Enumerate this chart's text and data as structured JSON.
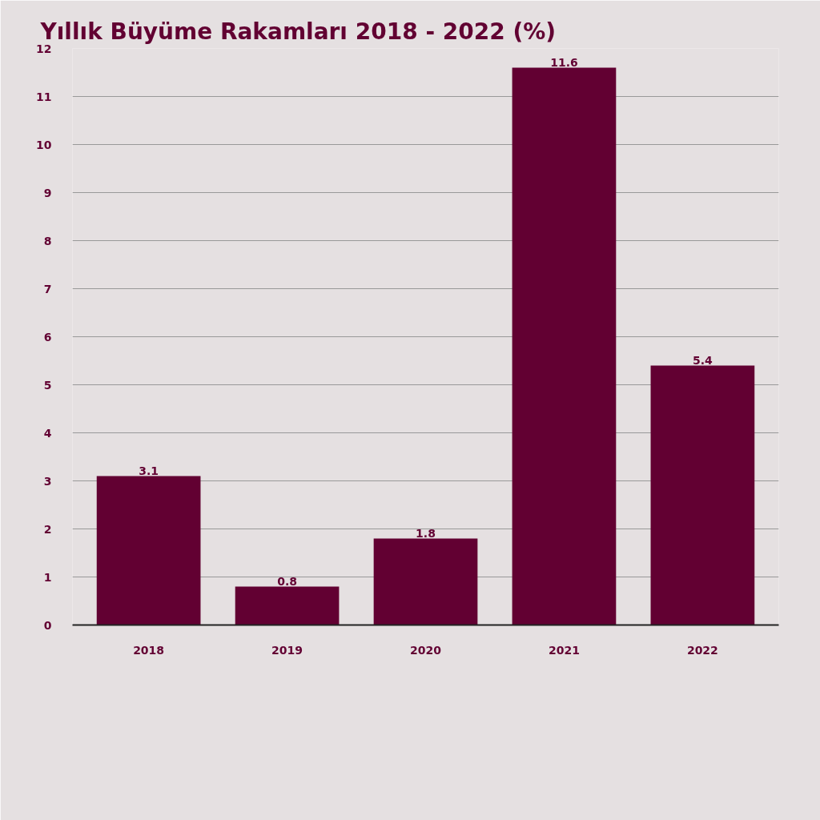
{
  "chart_data": {
    "type": "bar",
    "title": "Yıllık Büyüme Rakamları 2018 - 2022 (%)",
    "categories": [
      "2018",
      "2019",
      "2020",
      "2021",
      "2022"
    ],
    "values": [
      3.1,
      0.8,
      1.8,
      11.6,
      5.4
    ],
    "color": "#620032",
    "ylim": [
      0,
      12
    ],
    "yticks": [
      0,
      1,
      2,
      3,
      4,
      5,
      6,
      7,
      8,
      9,
      10,
      11,
      12
    ],
    "grid": "y",
    "data_labels": true
  }
}
